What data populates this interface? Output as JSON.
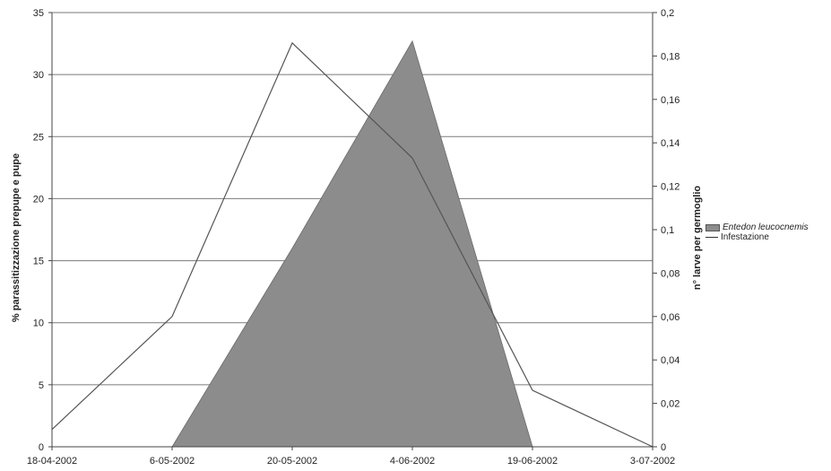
{
  "chart_data": {
    "type": "area",
    "x_categories": [
      "18-04-2002",
      "6-05-2002",
      "20-05-2002",
      "4-06-2002",
      "19-06-2002",
      "3-07-2002"
    ],
    "y_left": {
      "label": "% parassitizzazione prepupe e pupe",
      "min": 0,
      "max": 35,
      "ticks": [
        "0",
        "5",
        "10",
        "15",
        "20",
        "25",
        "30",
        "35"
      ]
    },
    "y_right": {
      "label": "n° larve per germoglio",
      "min": 0,
      "max": 0.2,
      "ticks": [
        "0",
        "0,02",
        "0,04",
        "0,06",
        "0,08",
        "0,1",
        "0,12",
        "0,14",
        "0,16",
        "0,18",
        "0,2"
      ]
    },
    "grid": true,
    "legend_position": "right",
    "series": [
      {
        "name": "Entedon leucocnemis",
        "type": "area",
        "axis": "left",
        "color": "#8c8c8c",
        "values": [
          null,
          0,
          16,
          32.7,
          0,
          null
        ]
      },
      {
        "name": "Infestazione",
        "type": "line",
        "axis": "right",
        "color": "#555555",
        "values": [
          0.008,
          0.06,
          0.186,
          0.133,
          0.026,
          0
        ]
      }
    ]
  }
}
